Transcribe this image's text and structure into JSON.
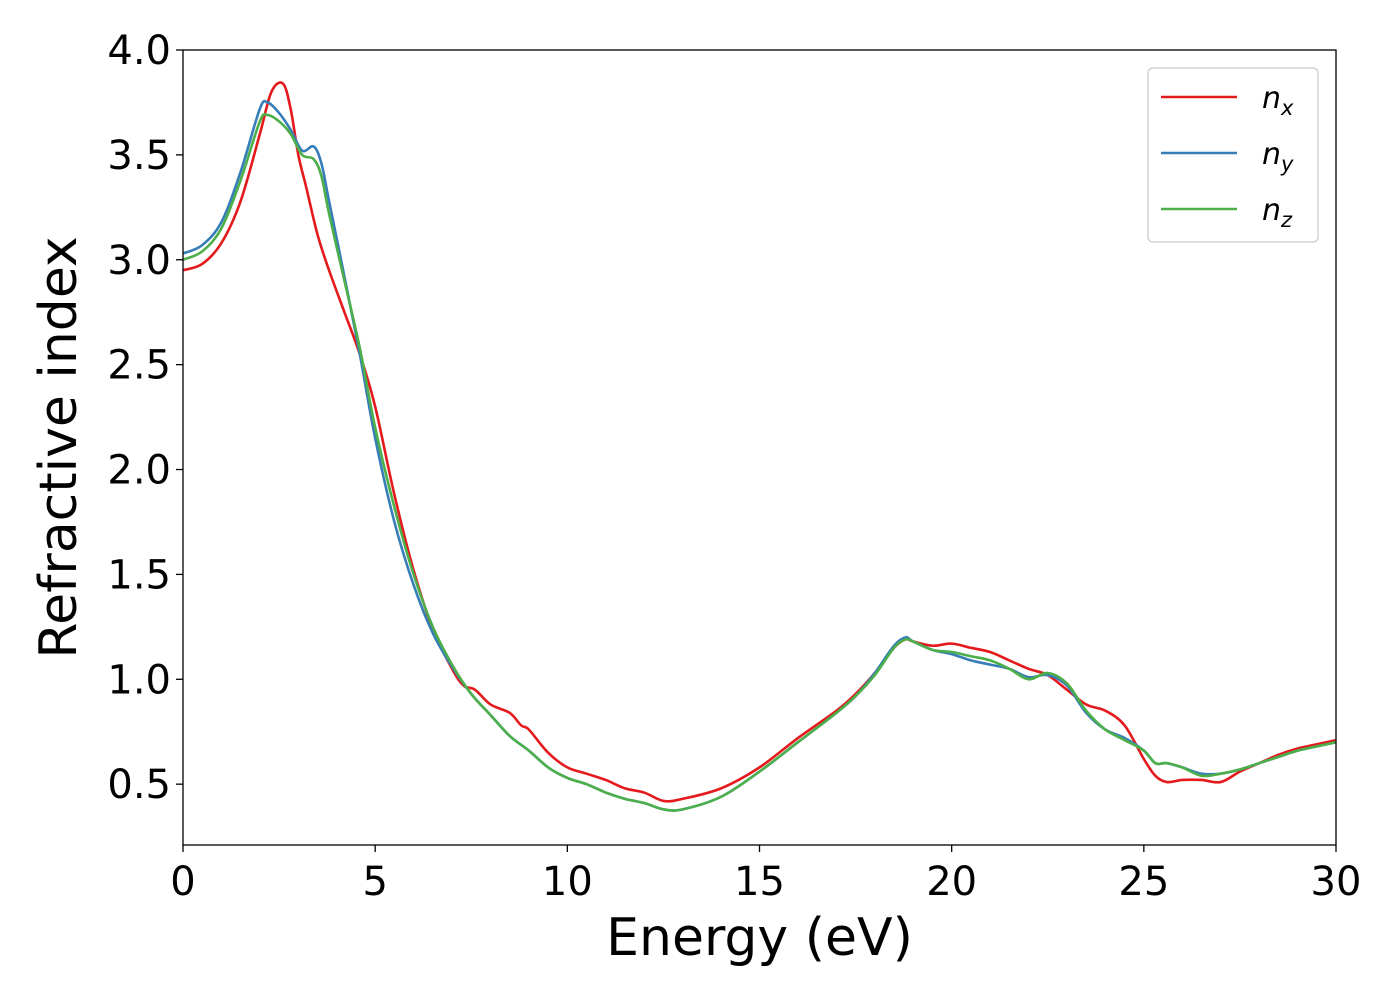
{
  "chart_data": {
    "type": "line",
    "xlabel": "Energy (eV)",
    "ylabel": "Refractive index",
    "xlim": [
      0,
      30
    ],
    "ylim": [
      0.21,
      4.0
    ],
    "xticks": [
      0,
      5,
      10,
      15,
      20,
      25,
      30
    ],
    "xtick_labels": [
      "0",
      "5",
      "10",
      "15",
      "20",
      "25",
      "30"
    ],
    "yticks": [
      0.5,
      1.0,
      1.5,
      2.0,
      2.5,
      3.0,
      3.5,
      4.0
    ],
    "ytick_labels": [
      "0.5",
      "1.0",
      "1.5",
      "2.0",
      "2.5",
      "3.0",
      "3.5",
      "4.0"
    ],
    "grid": false,
    "legend_position": "top-right",
    "series": [
      {
        "name": "n_x",
        "label_main": "n",
        "label_sub": "x",
        "color": "#e41a1c",
        "x": [
          0,
          0.5,
          1.0,
          1.5,
          2.0,
          2.3,
          2.6,
          2.8,
          3.0,
          3.2,
          3.5,
          3.8,
          4.2,
          4.6,
          5.0,
          5.5,
          6.0,
          6.5,
          7.0,
          7.3,
          7.6,
          8.0,
          8.5,
          8.8,
          9.0,
          9.5,
          10.0,
          10.5,
          11.0,
          11.5,
          12.0,
          12.5,
          13.0,
          14.0,
          15.0,
          16.0,
          17.0,
          17.5,
          18.0,
          18.5,
          18.8,
          19.0,
          19.5,
          20.0,
          20.5,
          21.0,
          21.5,
          22.0,
          22.5,
          23.0,
          23.5,
          24.0,
          24.5,
          25.0,
          25.3,
          25.6,
          26.0,
          26.5,
          27.0,
          27.5,
          28.0,
          28.5,
          29.0,
          29.5,
          30.0
        ],
        "y": [
          2.95,
          2.98,
          3.08,
          3.28,
          3.6,
          3.8,
          3.84,
          3.72,
          3.5,
          3.35,
          3.12,
          2.95,
          2.75,
          2.55,
          2.3,
          1.88,
          1.52,
          1.24,
          1.05,
          0.97,
          0.95,
          0.88,
          0.84,
          0.78,
          0.76,
          0.65,
          0.58,
          0.55,
          0.52,
          0.48,
          0.46,
          0.42,
          0.43,
          0.48,
          0.58,
          0.72,
          0.85,
          0.93,
          1.03,
          1.15,
          1.19,
          1.18,
          1.16,
          1.17,
          1.15,
          1.13,
          1.09,
          1.05,
          1.02,
          0.95,
          0.88,
          0.85,
          0.78,
          0.62,
          0.54,
          0.51,
          0.52,
          0.52,
          0.51,
          0.56,
          0.6,
          0.64,
          0.67,
          0.69,
          0.71
        ]
      },
      {
        "name": "n_y",
        "label_main": "n",
        "label_sub": "y",
        "color": "#377eb8",
        "x": [
          0,
          0.5,
          1.0,
          1.5,
          2.0,
          2.2,
          2.5,
          2.8,
          3.1,
          3.4,
          3.6,
          3.8,
          4.2,
          4.6,
          5.0,
          5.5,
          6.0,
          6.5,
          7.0,
          7.5,
          8.0,
          8.5,
          9.0,
          9.5,
          10.0,
          10.5,
          11.0,
          11.5,
          12.0,
          12.5,
          13.0,
          14.0,
          15.0,
          16.0,
          17.0,
          17.5,
          18.0,
          18.5,
          18.8,
          19.0,
          19.5,
          20.0,
          20.5,
          21.0,
          21.5,
          22.0,
          22.5,
          23.0,
          23.5,
          24.0,
          24.5,
          25.0,
          25.3,
          25.6,
          26.0,
          26.5,
          27.0,
          27.5,
          28.0,
          28.5,
          29.0,
          29.5,
          30.0
        ],
        "y": [
          3.03,
          3.07,
          3.18,
          3.42,
          3.72,
          3.75,
          3.7,
          3.62,
          3.52,
          3.54,
          3.46,
          3.28,
          2.92,
          2.55,
          2.15,
          1.75,
          1.45,
          1.22,
          1.06,
          0.93,
          0.83,
          0.73,
          0.66,
          0.58,
          0.53,
          0.5,
          0.46,
          0.43,
          0.41,
          0.38,
          0.38,
          0.44,
          0.56,
          0.7,
          0.84,
          0.92,
          1.03,
          1.16,
          1.2,
          1.18,
          1.14,
          1.12,
          1.09,
          1.07,
          1.05,
          1.01,
          1.02,
          0.97,
          0.84,
          0.76,
          0.72,
          0.66,
          0.6,
          0.6,
          0.58,
          0.55,
          0.55,
          0.57,
          0.6,
          0.63,
          0.66,
          0.68,
          0.7
        ]
      },
      {
        "name": "n_z",
        "label_main": "n",
        "label_sub": "z",
        "color": "#4daf4a",
        "x": [
          0,
          0.5,
          1.0,
          1.5,
          2.0,
          2.2,
          2.5,
          2.8,
          3.1,
          3.4,
          3.6,
          3.8,
          4.2,
          4.6,
          5.0,
          5.5,
          6.0,
          6.5,
          7.0,
          7.5,
          8.0,
          8.5,
          9.0,
          9.5,
          10.0,
          10.5,
          11.0,
          11.5,
          12.0,
          12.5,
          13.0,
          14.0,
          15.0,
          16.0,
          17.0,
          17.5,
          18.0,
          18.5,
          18.8,
          19.0,
          19.5,
          20.0,
          20.5,
          21.0,
          21.5,
          22.0,
          22.5,
          23.0,
          23.5,
          24.0,
          24.5,
          25.0,
          25.3,
          25.6,
          26.0,
          26.5,
          27.0,
          27.5,
          28.0,
          28.5,
          29.0,
          29.5,
          30.0
        ],
        "y": [
          3.0,
          3.04,
          3.15,
          3.38,
          3.66,
          3.69,
          3.66,
          3.6,
          3.5,
          3.48,
          3.4,
          3.22,
          2.9,
          2.58,
          2.2,
          1.82,
          1.5,
          1.25,
          1.07,
          0.93,
          0.83,
          0.73,
          0.66,
          0.58,
          0.53,
          0.5,
          0.46,
          0.43,
          0.41,
          0.38,
          0.38,
          0.44,
          0.56,
          0.7,
          0.84,
          0.92,
          1.02,
          1.15,
          1.19,
          1.18,
          1.14,
          1.13,
          1.11,
          1.09,
          1.05,
          1.0,
          1.03,
          0.98,
          0.85,
          0.76,
          0.71,
          0.66,
          0.6,
          0.6,
          0.58,
          0.54,
          0.55,
          0.57,
          0.6,
          0.63,
          0.66,
          0.68,
          0.7
        ]
      }
    ]
  }
}
